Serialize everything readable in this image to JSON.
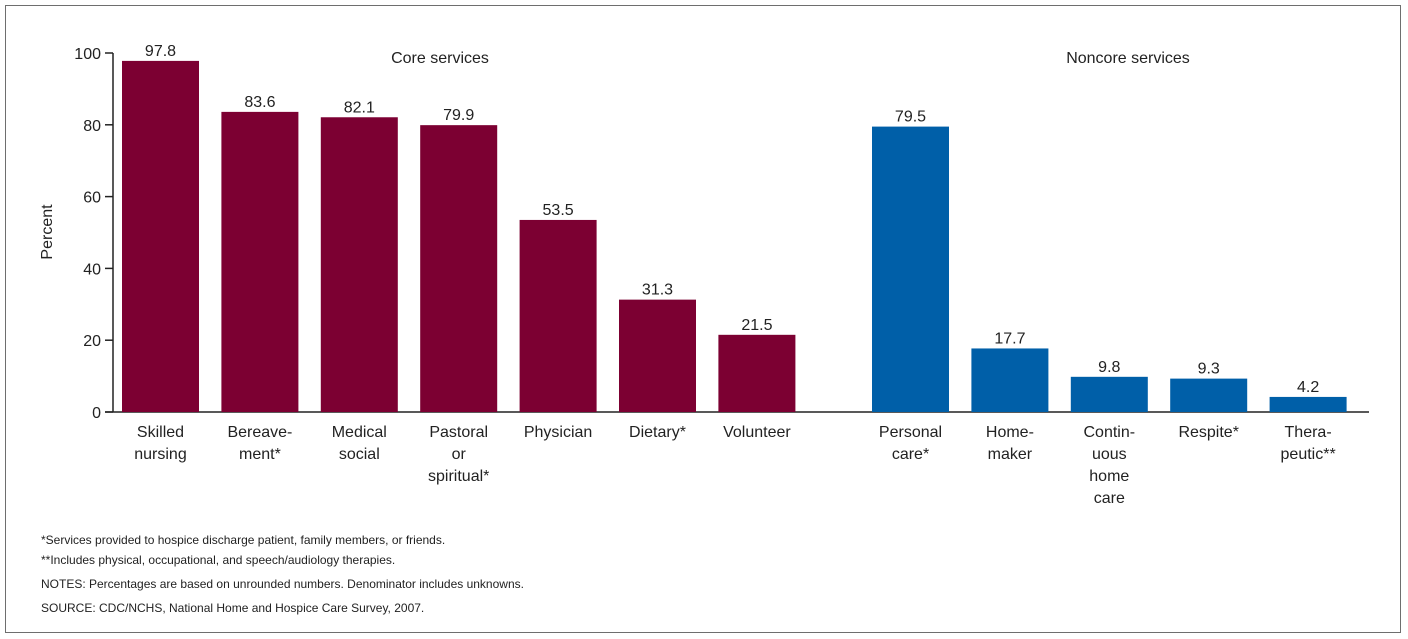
{
  "chart_data": {
    "type": "bar",
    "ylabel": "Percent",
    "ylim": [
      0,
      100
    ],
    "yticks": [
      0,
      20,
      40,
      60,
      80,
      100
    ],
    "grid": false,
    "groups": [
      {
        "title": "Core services",
        "color": "#7c0032",
        "bars": [
          {
            "label": [
              "Skilled",
              "nursing"
            ],
            "value": 97.8
          },
          {
            "label": [
              "Bereave-",
              "ment*"
            ],
            "value": 83.6
          },
          {
            "label": [
              "Medical",
              "social"
            ],
            "value": 82.1
          },
          {
            "label": [
              "Pastoral",
              "or",
              "spiritual*"
            ],
            "value": 79.9
          },
          {
            "label": [
              "Physician"
            ],
            "value": 53.5
          },
          {
            "label": [
              "Dietary*"
            ],
            "value": 31.3
          },
          {
            "label": [
              "Volunteer"
            ],
            "value": 21.5
          }
        ]
      },
      {
        "title": "Noncore services",
        "color": "#005fa8",
        "bars": [
          {
            "label": [
              "Personal",
              "care*"
            ],
            "value": 79.5
          },
          {
            "label": [
              "Home-",
              "maker"
            ],
            "value": 17.7
          },
          {
            "label": [
              "Contin-",
              "uous",
              "home",
              "care"
            ],
            "value": 9.8
          },
          {
            "label": [
              "Respite*"
            ],
            "value": 9.3
          },
          {
            "label": [
              "Thera-",
              "peutic**"
            ],
            "value": 4.2
          }
        ]
      }
    ]
  },
  "notes": {
    "footnote1": "*Services provided to hospice discharge patient, family members, or friends.",
    "footnote2": "**Includes physical, occupational, and speech/audiology therapies.",
    "notes": "NOTES: Percentages are based on unrounded numbers. Denominator includes unknowns.",
    "source": "SOURCE: CDC/NCHS, National Home and Hospice Care Survey, 2007."
  }
}
